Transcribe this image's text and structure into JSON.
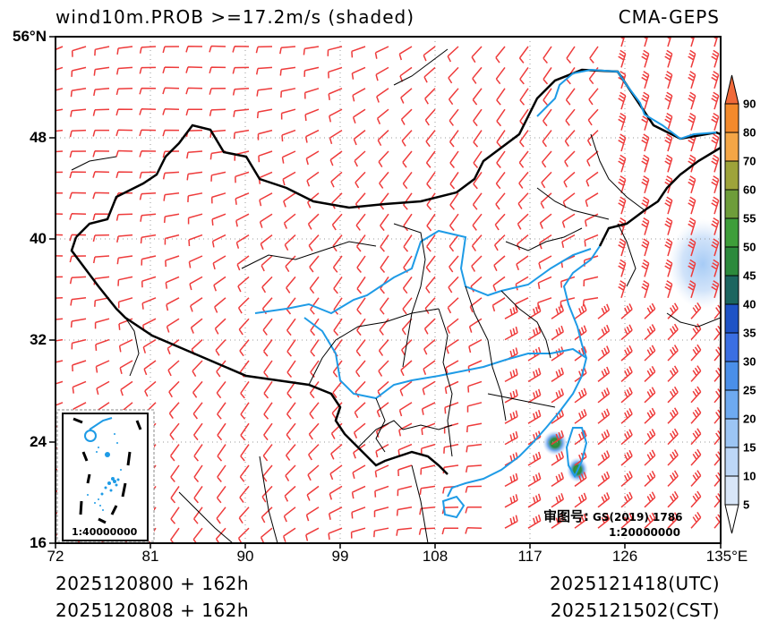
{
  "header": {
    "title": "wind10m.PROB >=17.2m/s (shaded)",
    "model": "CMA-GEPS"
  },
  "axes": {
    "y_ticks": [
      {
        "label": "56°N",
        "lat": 56
      },
      {
        "label": "48",
        "lat": 48
      },
      {
        "label": "40",
        "lat": 40
      },
      {
        "label": "32",
        "lat": 32
      },
      {
        "label": "24",
        "lat": 24
      },
      {
        "label": "16",
        "lat": 16
      }
    ],
    "x_ticks": [
      {
        "label": "72",
        "lon": 72
      },
      {
        "label": "81",
        "lon": 81
      },
      {
        "label": "90",
        "lon": 90
      },
      {
        "label": "99",
        "lon": 99
      },
      {
        "label": "108",
        "lon": 108
      },
      {
        "label": "117",
        "lon": 117
      },
      {
        "label": "126",
        "lon": 126
      },
      {
        "label": "135°E",
        "lon": 135
      }
    ],
    "lon_range": [
      72,
      135
    ],
    "lat_range": [
      16,
      56
    ]
  },
  "colorbar": {
    "labels": [
      "90",
      "80",
      "70",
      "60",
      "55",
      "50",
      "45",
      "40",
      "35",
      "30",
      "25",
      "20",
      "15",
      "10",
      "5"
    ],
    "colors": [
      "#f7d5f0",
      "#d8e6f8",
      "#bdd7f7",
      "#9cc5f4",
      "#6eaaf0",
      "#4a8fe9",
      "#3b6fe3",
      "#1f53c6",
      "#1c6660",
      "#2c8a3c",
      "#3e9e3a",
      "#6e9d3a",
      "#9ea33a",
      "#f4a646",
      "#f38a2c",
      "#f06a3a"
    ],
    "top_arrow_color": "#f06a3a",
    "bottom_arrow_color": "#ffffff"
  },
  "annotations": {
    "review_label": "审图号:",
    "review_code": "GS(2019) 1786",
    "main_scale": "1:20000000",
    "inset_scale": "1:40000000"
  },
  "footer": {
    "init_utc": "2025120800 + 162h",
    "init_cst": "2025120808 + 162h",
    "valid_utc": "2025121418(UTC)",
    "valid_cst": "2025121502(CST)"
  },
  "colors": {
    "barb": "#ee3b3b",
    "river": "#1e9be6",
    "border": "#000000"
  }
}
